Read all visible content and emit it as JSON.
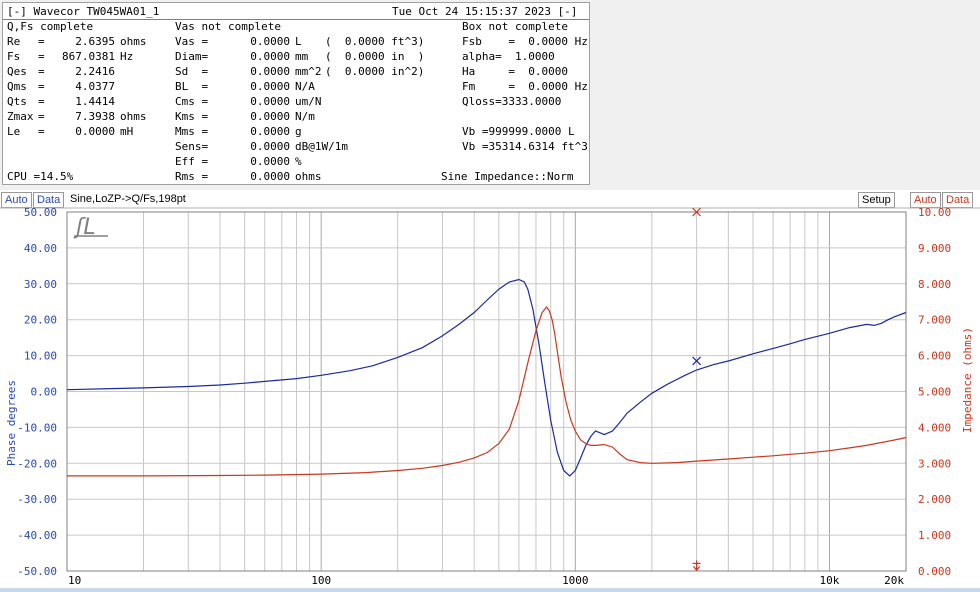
{
  "header": {
    "title": "[-] Wavecor TW045WA01_1",
    "datetime": "Tue Oct 24 15:15:37 2023 [-]"
  },
  "status": {
    "qfs": "Q,Fs complete",
    "vas": "Vas not complete",
    "box": "Box not complete"
  },
  "col1": [
    {
      "label": "Re",
      "eq": "=",
      "value": "2.6395",
      "unit": "ohms"
    },
    {
      "label": "Fs",
      "eq": "=",
      "value": "867.0381",
      "unit": "Hz"
    },
    {
      "label": "Qes",
      "eq": "=",
      "value": "2.2416",
      "unit": ""
    },
    {
      "label": "Qms",
      "eq": "=",
      "value": "4.0377",
      "unit": ""
    },
    {
      "label": "Qts",
      "eq": "=",
      "value": "1.4414",
      "unit": ""
    },
    {
      "label": "Zmax",
      "eq": "=",
      "value": "7.3938",
      "unit": "ohms"
    },
    {
      "label": "Le",
      "eq": "=",
      "value": "0.0000",
      "unit": "mH"
    }
  ],
  "col2": [
    {
      "label": "Vas =",
      "value": "0.0000",
      "unit": "L",
      "extra": "(  0.0000 ft^3)"
    },
    {
      "label": "Diam=",
      "value": "0.0000",
      "unit": "mm",
      "extra": "(  0.0000 in  )"
    },
    {
      "label": "Sd  =",
      "value": "0.0000",
      "unit": "mm^2",
      "extra": "(  0.0000 in^2)"
    },
    {
      "label": "BL  =",
      "value": "0.0000",
      "unit": "N/A",
      "extra": ""
    },
    {
      "label": "Cms =",
      "value": "0.0000",
      "unit": "um/N",
      "extra": ""
    },
    {
      "label": "Kms =",
      "value": "0.0000",
      "unit": "N/m",
      "extra": ""
    },
    {
      "label": "Mms =",
      "value": "0.0000",
      "unit": "g",
      "extra": ""
    },
    {
      "label": "Sens=",
      "value": "0.0000",
      "unit": "dB@1W/1m",
      "extra": ""
    },
    {
      "label": "Eff =",
      "value": "0.0000",
      "unit": "%",
      "extra": ""
    },
    {
      "label": "Rms =",
      "value": "0.0000",
      "unit": "ohms",
      "extra": ""
    }
  ],
  "col3": [
    {
      "text": "Fsb    =  0.0000 Hz"
    },
    {
      "text": "alpha=  1.0000"
    },
    {
      "text": "Ha     =  0.0000"
    },
    {
      "text": "Fm     =  0.0000 Hz"
    },
    {
      "text": "Qloss=3333.0000"
    },
    {
      "text": ""
    },
    {
      "text": "Vb =999999.0000 L"
    },
    {
      "text": "Vb =35314.6314 ft^3"
    }
  ],
  "footer": {
    "cpu": "CPU =14.5%",
    "mode": "Sine Impedance::Norm"
  },
  "chart_bar": {
    "auto_left": "Auto",
    "data_left": "Data",
    "description": "Sine,LoZP->Q/Fs,198pt",
    "setup": "Setup",
    "auto_right": "Auto",
    "data_right": "Data"
  },
  "colors": {
    "phase": "#1a2aa0",
    "impedance": "#c8381e",
    "grid": "#c8c8c8",
    "left_axis_text": "#2a4ab0",
    "right_axis_text": "#c8381e"
  },
  "chart_data": {
    "type": "line",
    "xscale": "log",
    "xlim": [
      10,
      20000
    ],
    "x_ticks": [
      {
        "v": 10,
        "label": "10"
      },
      {
        "v": 100,
        "label": "100"
      },
      {
        "v": 1000,
        "label": "1000"
      },
      {
        "v": 10000,
        "label": "10k"
      },
      {
        "v": 20000,
        "label": "20k"
      }
    ],
    "ylabel_left": "Phase degrees",
    "ylim_left": [
      -50,
      50
    ],
    "yticks_left": [
      "50.00",
      "40.00",
      "30.00",
      "20.00",
      "10.00",
      "0.00",
      "-10.00",
      "-20.00",
      "-30.00",
      "-40.00",
      "-50.00"
    ],
    "ylabel_right": "Impedance (ohms)",
    "ylim_right": [
      0,
      10
    ],
    "yticks_right": [
      "10.00",
      "9.000",
      "8.000",
      "7.000",
      "6.000",
      "5.000",
      "4.000",
      "3.000",
      "2.000",
      "1.000",
      "0.000"
    ],
    "grid": true,
    "series": [
      {
        "axis": "left",
        "x": [
          10,
          15,
          20,
          30,
          40,
          50,
          60,
          80,
          100,
          130,
          160,
          200,
          250,
          300,
          350,
          400,
          450,
          500,
          550,
          600,
          630,
          650,
          680,
          720,
          760,
          800,
          850,
          900,
          950,
          1000,
          1050,
          1100,
          1150,
          1200,
          1300,
          1400,
          1500,
          1600,
          1800,
          2000,
          2300,
          2700,
          3000,
          3500,
          4000,
          5000,
          6000,
          7000,
          8000,
          10000,
          12000,
          14000,
          15000,
          16000,
          17000,
          18000,
          20000
        ],
        "y": [
          0.5,
          0.8,
          1.0,
          1.4,
          1.8,
          2.3,
          2.8,
          3.6,
          4.5,
          5.8,
          7.2,
          9.5,
          12.2,
          15.5,
          18.8,
          22.0,
          25.5,
          28.5,
          30.5,
          31.2,
          30.5,
          28.5,
          23.0,
          13.0,
          2.0,
          -8.0,
          -17.0,
          -22.0,
          -23.5,
          -22.0,
          -18.5,
          -15.0,
          -12.5,
          -11.0,
          -12.0,
          -11.0,
          -8.5,
          -6.0,
          -3.0,
          -0.5,
          2.0,
          4.5,
          6.0,
          7.5,
          8.5,
          10.5,
          12.0,
          13.3,
          14.5,
          16.2,
          17.8,
          18.7,
          18.4,
          19.0,
          20.0,
          20.8,
          22.0
        ]
      },
      {
        "axis": "right",
        "x": [
          10,
          20,
          40,
          60,
          100,
          150,
          200,
          250,
          300,
          350,
          400,
          450,
          500,
          550,
          600,
          650,
          700,
          740,
          770,
          790,
          810,
          830,
          850,
          880,
          920,
          960,
          1000,
          1050,
          1100,
          1150,
          1200,
          1300,
          1400,
          1500,
          1600,
          1800,
          2000,
          2500,
          3000,
          4000,
          5000,
          6000,
          7000,
          8000,
          10000,
          12000,
          14000,
          16000,
          18000,
          20000
        ],
        "y": [
          2.65,
          2.65,
          2.66,
          2.67,
          2.7,
          2.74,
          2.8,
          2.86,
          2.94,
          3.03,
          3.15,
          3.3,
          3.55,
          3.95,
          4.75,
          5.8,
          6.7,
          7.2,
          7.35,
          7.25,
          7.0,
          6.6,
          6.1,
          5.4,
          4.7,
          4.2,
          3.9,
          3.65,
          3.55,
          3.5,
          3.5,
          3.52,
          3.45,
          3.25,
          3.1,
          3.02,
          3.0,
          3.02,
          3.06,
          3.12,
          3.17,
          3.21,
          3.25,
          3.28,
          3.35,
          3.43,
          3.5,
          3.58,
          3.65,
          3.72
        ]
      }
    ],
    "markers": [
      {
        "x": 3000,
        "axis": "right",
        "y": 10.0,
        "symbol": "x",
        "color": "#c8381e"
      },
      {
        "x": 3000,
        "axis": "left",
        "y": 8.5,
        "symbol": "x",
        "color": "#1a2aa0"
      },
      {
        "x": 3000,
        "axis": "right",
        "y": 0.1,
        "symbol": "arrow",
        "color": "#c8381e"
      }
    ]
  }
}
